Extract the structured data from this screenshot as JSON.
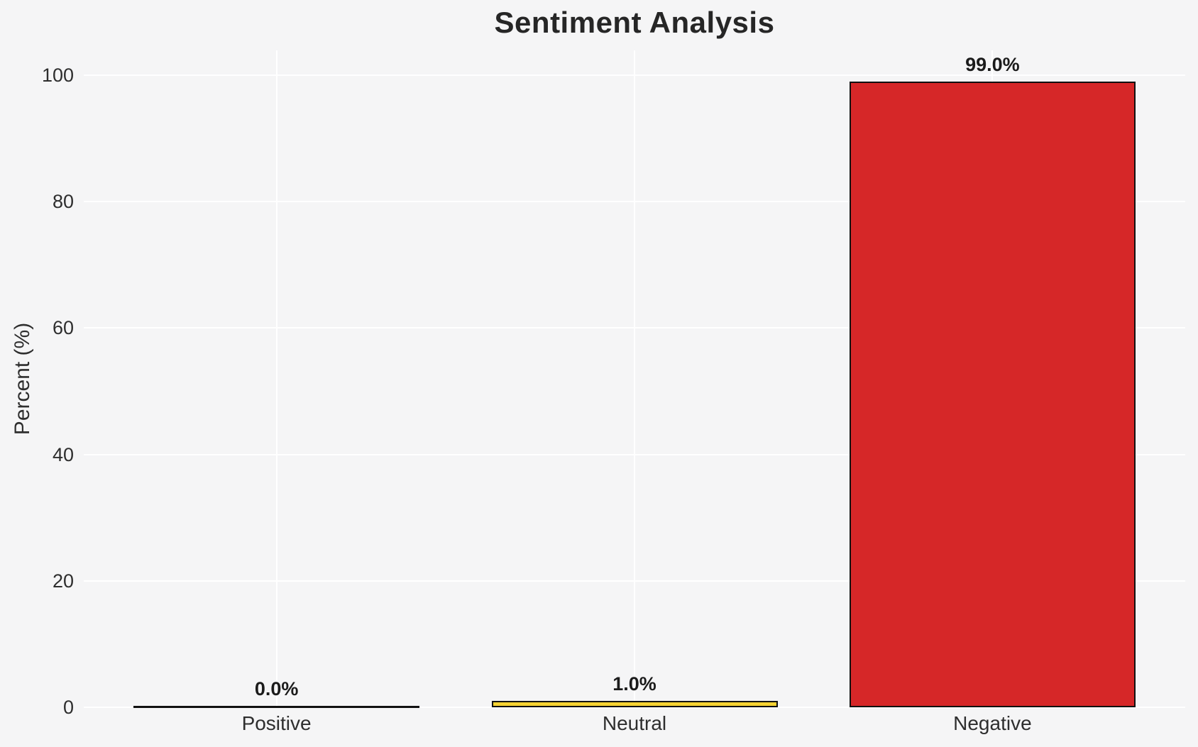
{
  "chart_data": {
    "type": "bar",
    "title": "Sentiment Analysis",
    "xlabel": "",
    "ylabel": "Percent (%)",
    "categories": [
      "Positive",
      "Neutral",
      "Negative"
    ],
    "values": [
      0.0,
      1.0,
      99.0
    ],
    "bar_labels": [
      "0.0%",
      "1.0%",
      "99.0%"
    ],
    "bar_colors": [
      "#f5f5f6",
      "#f5d233",
      "#d62728"
    ],
    "bar_edge_color": "#111111",
    "yticks": [
      0,
      20,
      40,
      60,
      80,
      100
    ],
    "ylim": [
      0,
      104
    ],
    "grid": true,
    "grid_color": "#ffffff",
    "legend": null,
    "background_color": "#f5f5f6",
    "title_color": "#262626",
    "tick_color": "#2e2e2e",
    "value_label_color": "#1b1b1b"
  }
}
